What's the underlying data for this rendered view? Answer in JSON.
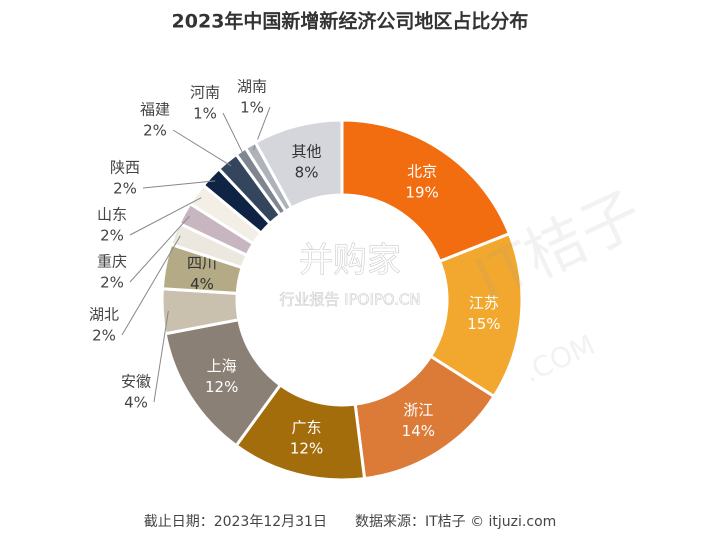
{
  "chart_data": {
    "type": "donut",
    "title": "2023年中国新增新经济公司地区占比分布",
    "categories": [
      "北京",
      "江苏",
      "浙江",
      "广东",
      "上海",
      "安徽",
      "四川",
      "湖北",
      "重庆",
      "山东",
      "陕西",
      "福建",
      "河南",
      "湖南",
      "其他"
    ],
    "values": [
      19,
      15,
      14,
      12,
      12,
      4,
      4,
      2,
      2,
      2,
      2,
      2,
      1,
      1,
      8
    ],
    "value_labels": [
      "19%",
      "15%",
      "14%",
      "12%",
      "12%",
      "4%",
      "4%",
      "2%",
      "2%",
      "2%",
      "2%",
      "2%",
      "1%",
      "1%",
      "8%"
    ],
    "colors": [
      "#f26c10",
      "#f2a82e",
      "#dc7a38",
      "#a46d0c",
      "#8b8075",
      "#c9c0ae",
      "#b4ab86",
      "#ece8e0",
      "#c7b6bf",
      "#f3efe6",
      "#0f2444",
      "#34455e",
      "#7f8692",
      "#aeb2ba",
      "#d4d6dc"
    ],
    "watermarks": [
      "IT桔子",
      ".COM",
      "并购家",
      "行业报告 IPOIPO.CN"
    ],
    "source": "截止日期：2023年12月31日　　数据来源：IT桔子 © itjuzi.com"
  }
}
